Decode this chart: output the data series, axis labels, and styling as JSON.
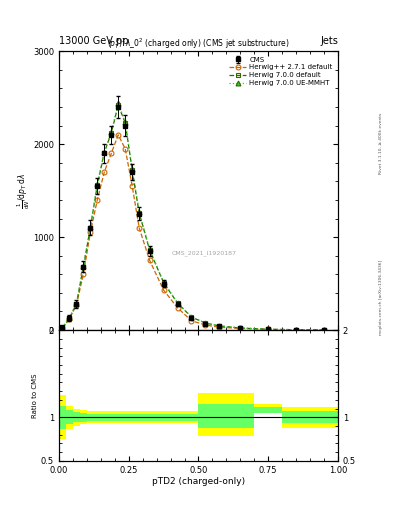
{
  "title": "13000 GeV pp",
  "title_right": "Jets",
  "plot_title": "$(p_T^P)^2\\lambda\\_0^2$ (charged only) (CMS jet substructure)",
  "ylabel_main_top": "mathrm d$^2$N",
  "ylabel_ratio": "Ratio to CMS",
  "xlabel": "pTD2 (charged-only)",
  "watermark": "CMS_2021_I1920187",
  "rivet_version": "Rivet 3.1.10, ≥ 400k events",
  "mcplots": "mcplots.cern.ch [arXiv:1306.3436]",
  "x_bins": [
    0.0,
    0.025,
    0.05,
    0.075,
    0.1,
    0.125,
    0.15,
    0.175,
    0.2,
    0.225,
    0.25,
    0.275,
    0.3,
    0.35,
    0.4,
    0.45,
    0.5,
    0.55,
    0.6,
    0.7,
    0.8,
    0.9,
    1.0
  ],
  "cms_y": [
    30,
    130,
    280,
    680,
    1100,
    1550,
    1900,
    2100,
    2400,
    2200,
    1700,
    1250,
    850,
    500,
    280,
    130,
    70,
    40,
    20,
    8,
    4,
    2
  ],
  "cms_yerr": [
    10,
    30,
    40,
    60,
    80,
    90,
    100,
    100,
    120,
    110,
    90,
    70,
    50,
    35,
    20,
    15,
    10,
    7,
    5,
    3,
    2,
    1
  ],
  "hw271_y": [
    20,
    120,
    270,
    600,
    1050,
    1400,
    1700,
    1900,
    2100,
    1950,
    1550,
    1100,
    750,
    430,
    240,
    100,
    55,
    30,
    18,
    7,
    3,
    2
  ],
  "hw700_y": [
    25,
    130,
    280,
    680,
    1100,
    1560,
    1910,
    2120,
    2420,
    2230,
    1720,
    1260,
    860,
    510,
    290,
    140,
    75,
    45,
    22,
    9,
    4,
    2
  ],
  "hw700ue_y": [
    25,
    130,
    285,
    690,
    1110,
    1570,
    1920,
    2130,
    2440,
    2240,
    1730,
    1270,
    870,
    515,
    295,
    142,
    76,
    46,
    23,
    9,
    4,
    2
  ],
  "ratio_band_yellow_lo": [
    0.75,
    0.87,
    0.9,
    0.92,
    0.93,
    0.93,
    0.93,
    0.93,
    0.93,
    0.93,
    0.93,
    0.93,
    0.93,
    0.93,
    0.93,
    0.93,
    0.78,
    0.78,
    0.78,
    1.05,
    0.88,
    0.88
  ],
  "ratio_band_yellow_hi": [
    1.25,
    1.13,
    1.1,
    1.08,
    1.07,
    1.07,
    1.07,
    1.07,
    1.07,
    1.07,
    1.07,
    1.07,
    1.07,
    1.07,
    1.07,
    1.07,
    1.28,
    1.28,
    1.28,
    1.15,
    1.12,
    1.12
  ],
  "ratio_band_green_lo": [
    0.87,
    0.92,
    0.94,
    0.95,
    0.96,
    0.96,
    0.96,
    0.96,
    0.96,
    0.96,
    0.96,
    0.96,
    0.96,
    0.96,
    0.96,
    0.96,
    0.88,
    0.88,
    0.88,
    1.05,
    0.93,
    0.93
  ],
  "ratio_band_green_hi": [
    1.13,
    1.08,
    1.06,
    1.05,
    1.04,
    1.04,
    1.04,
    1.04,
    1.04,
    1.04,
    1.04,
    1.04,
    1.04,
    1.04,
    1.04,
    1.04,
    1.15,
    1.15,
    1.15,
    1.12,
    1.07,
    1.07
  ],
  "color_cms": "#000000",
  "color_hw271": "#cc6600",
  "color_hw700": "#336600",
  "color_hw700ue": "#33cc33",
  "color_yellow": "#ffff00",
  "color_green": "#66ff66",
  "bg_color": "#ffffff",
  "ylim_main": [
    0,
    3000
  ],
  "ylim_ratio": [
    0.5,
    2.0
  ],
  "xlim": [
    0.0,
    1.0
  ]
}
